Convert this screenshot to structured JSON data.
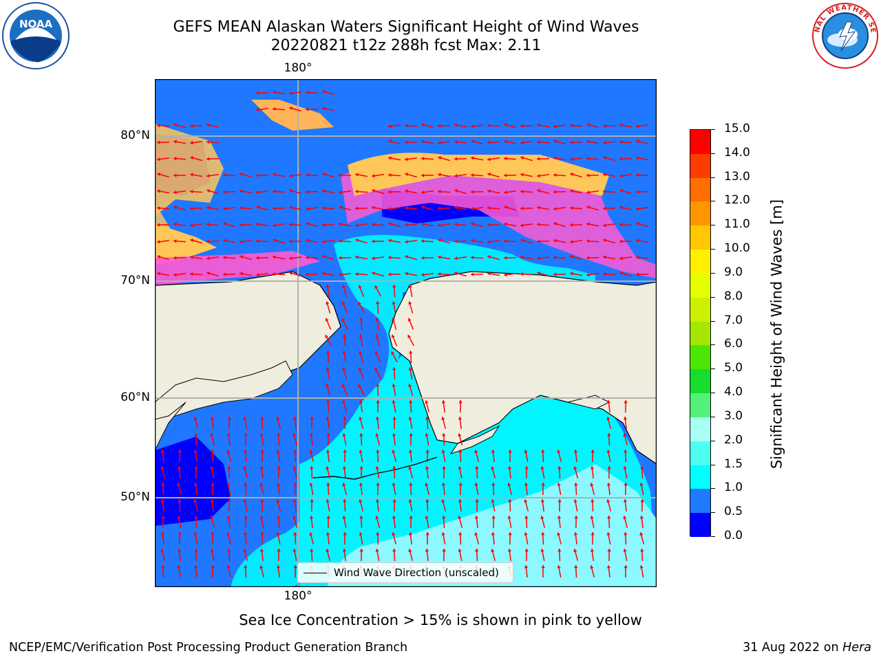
{
  "title_line1": "GEFS MEAN Alaskan Waters Significant Height of Wind Waves",
  "title_line2": "20220821 t12z 288h fcst   Max: 2.11",
  "noaa_logo_text": "NOAA",
  "nws_logo_text": "NATIONAL WEATHER SERVICE",
  "map": {
    "lat_labels": [
      "80°N",
      "70°N",
      "60°N",
      "50°N"
    ],
    "lon_top_label": "180°",
    "lon_bottom_label": "180°",
    "legend_label": "Wind Wave Direction (unscaled)",
    "land_color": "#efedde",
    "ocean_color": "#1f78ff",
    "vector_color": "#ff0000"
  },
  "colorbar": {
    "title": "Significant Height of Wind Waves [m]",
    "tick_labels": [
      "0.0",
      "0.5",
      "1.0",
      "1.5",
      "2.0",
      "3.0",
      "4.0",
      "5.0",
      "6.0",
      "7.0",
      "8.0",
      "9.0",
      "10.0",
      "11.0",
      "12.0",
      "13.0",
      "14.0",
      "15.0"
    ],
    "colors": [
      "#0000ff",
      "#1e7bff",
      "#00ffff",
      "#4dfff0",
      "#aafff5",
      "#55f07a",
      "#18dc2d",
      "#4ce600",
      "#a5e600",
      "#cdf000",
      "#e6ff00",
      "#fff000",
      "#ffc800",
      "#ff9600",
      "#ff6e00",
      "#ff3c00",
      "#ff0000"
    ]
  },
  "note": "Sea Ice Concentration > 15% is shown in pink to yellow",
  "footer_left": "NCEP/EMC/Verification Post Processing Product Generation Branch",
  "footer_date": "31 Aug 2022 on",
  "footer_host": "Hera"
}
